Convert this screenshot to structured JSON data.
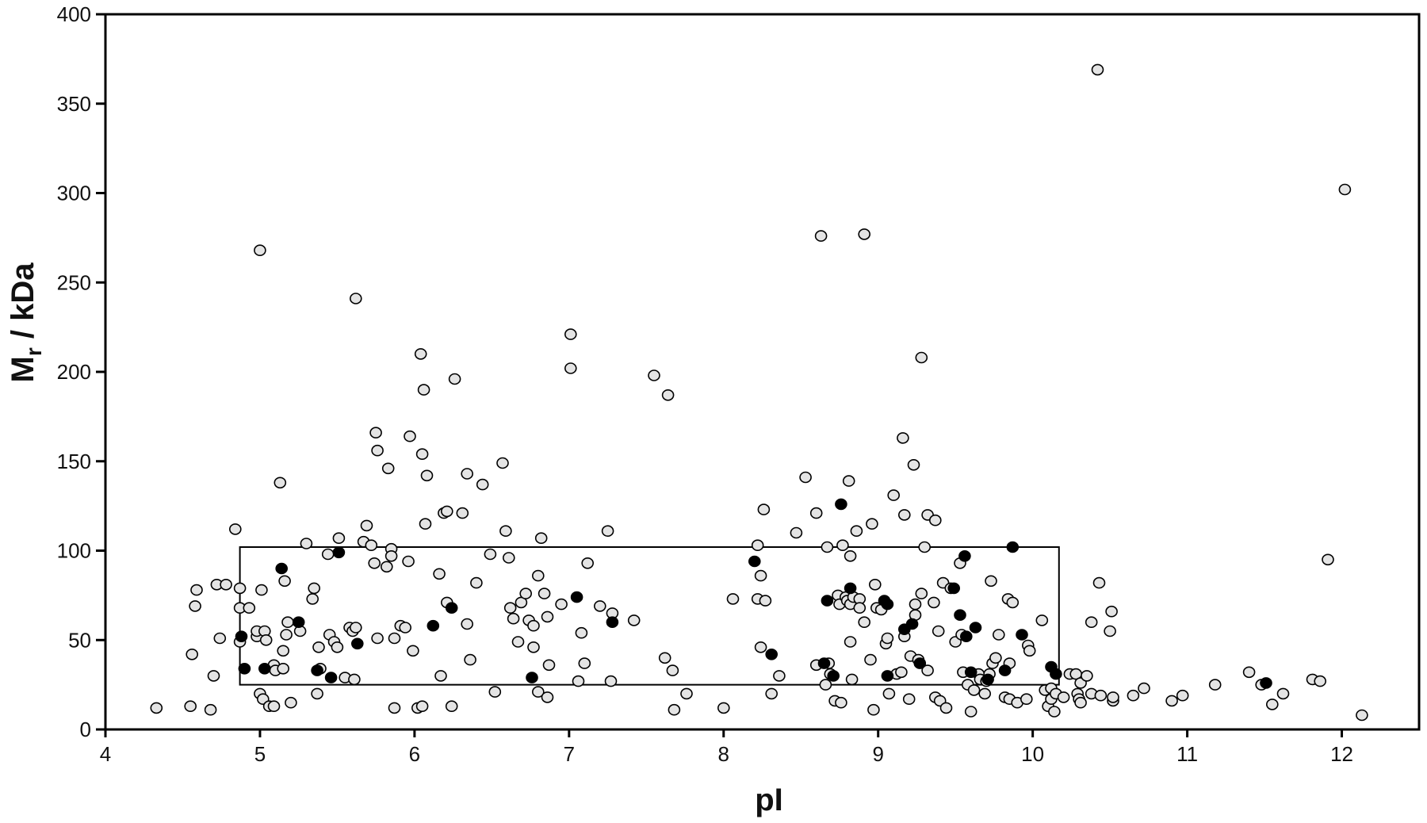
{
  "chart_data": {
    "type": "scatter",
    "xlabel": "pI",
    "ylabel_main": "M",
    "ylabel_sub": "r",
    "ylabel_rest": " / kDa",
    "xlim": [
      4,
      12.5
    ],
    "ylim": [
      0,
      400
    ],
    "xticks": [
      "4",
      "5",
      "6",
      "7",
      "8",
      "9",
      "10",
      "11",
      "12"
    ],
    "yticks": [
      "0",
      "50",
      "100",
      "150",
      "200",
      "250",
      "300",
      "350",
      "400"
    ],
    "grid": false,
    "legend": "none",
    "colors": {
      "open_fill": "#e4e4e4",
      "filled": "#000000",
      "stroke": "#000000"
    },
    "region_box": {
      "x": [
        4.87,
        10.17
      ],
      "y": [
        25,
        102
      ]
    },
    "series": [
      {
        "marker": "open",
        "points": [
          [
            4.33,
            12
          ],
          [
            4.55,
            13
          ],
          [
            4.68,
            11
          ],
          [
            4.56,
            42
          ],
          [
            4.7,
            30
          ],
          [
            4.74,
            51
          ],
          [
            4.58,
            69
          ],
          [
            4.59,
            78
          ],
          [
            4.72,
            81
          ],
          [
            4.78,
            81
          ],
          [
            4.84,
            112
          ],
          [
            4.87,
            68
          ],
          [
            4.87,
            79
          ],
          [
            4.87,
            49
          ],
          [
            4.93,
            68
          ],
          [
            4.98,
            52
          ],
          [
            4.98,
            55
          ],
          [
            5.0,
            20
          ],
          [
            5.02,
            17
          ],
          [
            5.03,
            55
          ],
          [
            5.04,
            50
          ],
          [
            5.0,
            268
          ],
          [
            5.01,
            78
          ],
          [
            5.06,
            13
          ],
          [
            5.09,
            13
          ],
          [
            5.09,
            36
          ],
          [
            5.1,
            33
          ],
          [
            5.13,
            138
          ],
          [
            5.15,
            34
          ],
          [
            5.15,
            44
          ],
          [
            5.17,
            53
          ],
          [
            5.16,
            83
          ],
          [
            5.18,
            60
          ],
          [
            5.2,
            15
          ],
          [
            5.26,
            55
          ],
          [
            5.3,
            104
          ],
          [
            5.34,
            73
          ],
          [
            5.35,
            79
          ],
          [
            5.37,
            20
          ],
          [
            5.39,
            34
          ],
          [
            5.38,
            46
          ],
          [
            5.44,
            98
          ],
          [
            5.45,
            53
          ],
          [
            5.48,
            49
          ],
          [
            5.5,
            46
          ],
          [
            5.51,
            107
          ],
          [
            5.55,
            29
          ],
          [
            5.58,
            57
          ],
          [
            5.6,
            55
          ],
          [
            5.62,
            241
          ],
          [
            5.61,
            28
          ],
          [
            5.62,
            57
          ],
          [
            5.67,
            105
          ],
          [
            5.69,
            114
          ],
          [
            5.72,
            103
          ],
          [
            5.74,
            93
          ],
          [
            5.75,
            166
          ],
          [
            5.76,
            51
          ],
          [
            5.76,
            156
          ],
          [
            5.82,
            91
          ],
          [
            5.83,
            146
          ],
          [
            5.85,
            101
          ],
          [
            5.85,
            97
          ],
          [
            5.87,
            12
          ],
          [
            5.87,
            51
          ],
          [
            5.91,
            58
          ],
          [
            5.94,
            57
          ],
          [
            5.97,
            164
          ],
          [
            5.96,
            94
          ],
          [
            5.99,
            44
          ],
          [
            6.02,
            12
          ],
          [
            6.04,
            210
          ],
          [
            6.05,
            13
          ],
          [
            6.06,
            190
          ],
          [
            6.05,
            154
          ],
          [
            6.07,
            115
          ],
          [
            6.08,
            142
          ],
          [
            6.16,
            87
          ],
          [
            6.17,
            30
          ],
          [
            6.19,
            121
          ],
          [
            6.21,
            122
          ],
          [
            6.24,
            13
          ],
          [
            6.26,
            196
          ],
          [
            6.21,
            71
          ],
          [
            6.31,
            121
          ],
          [
            6.34,
            143
          ],
          [
            6.34,
            59
          ],
          [
            6.36,
            39
          ],
          [
            6.4,
            82
          ],
          [
            6.44,
            137
          ],
          [
            6.49,
            98
          ],
          [
            6.52,
            21
          ],
          [
            6.57,
            149
          ],
          [
            6.59,
            111
          ],
          [
            6.61,
            96
          ],
          [
            6.62,
            68
          ],
          [
            6.64,
            62
          ],
          [
            6.67,
            49
          ],
          [
            6.69,
            71
          ],
          [
            6.72,
            76
          ],
          [
            6.74,
            61
          ],
          [
            6.77,
            58
          ],
          [
            6.77,
            46
          ],
          [
            6.8,
            86
          ],
          [
            6.8,
            21
          ],
          [
            6.82,
            107
          ],
          [
            6.84,
            76
          ],
          [
            6.86,
            63
          ],
          [
            6.87,
            36
          ],
          [
            6.86,
            18
          ],
          [
            6.95,
            70
          ],
          [
            7.01,
            221
          ],
          [
            7.01,
            202
          ],
          [
            7.06,
            27
          ],
          [
            7.08,
            54
          ],
          [
            7.1,
            37
          ],
          [
            7.12,
            93
          ],
          [
            7.2,
            69
          ],
          [
            7.25,
            111
          ],
          [
            7.27,
            27
          ],
          [
            7.28,
            65
          ],
          [
            7.42,
            61
          ],
          [
            7.55,
            198
          ],
          [
            7.62,
            40
          ],
          [
            7.64,
            187
          ],
          [
            7.67,
            33
          ],
          [
            7.68,
            11
          ],
          [
            7.76,
            20
          ],
          [
            8.0,
            12
          ],
          [
            8.06,
            73
          ],
          [
            8.22,
            103
          ],
          [
            8.22,
            73
          ],
          [
            8.24,
            86
          ],
          [
            8.24,
            46
          ],
          [
            8.26,
            123
          ],
          [
            8.27,
            72
          ],
          [
            8.31,
            20
          ],
          [
            8.36,
            30
          ],
          [
            8.47,
            110
          ],
          [
            8.53,
            141
          ],
          [
            8.6,
            121
          ],
          [
            8.6,
            36
          ],
          [
            8.63,
            276
          ],
          [
            8.67,
            102
          ],
          [
            8.66,
            25
          ],
          [
            8.68,
            37
          ],
          [
            8.69,
            31
          ],
          [
            8.72,
            16
          ],
          [
            8.74,
            75
          ],
          [
            8.75,
            70
          ],
          [
            8.76,
            15
          ],
          [
            8.77,
            103
          ],
          [
            8.79,
            74
          ],
          [
            8.8,
            72
          ],
          [
            8.81,
            139
          ],
          [
            8.82,
            97
          ],
          [
            8.82,
            70
          ],
          [
            8.82,
            49
          ],
          [
            8.83,
            28
          ],
          [
            8.84,
            74
          ],
          [
            8.86,
            111
          ],
          [
            8.88,
            73
          ],
          [
            8.88,
            68
          ],
          [
            8.91,
            277
          ],
          [
            8.91,
            60
          ],
          [
            8.95,
            39
          ],
          [
            8.96,
            115
          ],
          [
            8.97,
            11
          ],
          [
            8.98,
            81
          ],
          [
            8.99,
            68
          ],
          [
            9.02,
            67
          ],
          [
            9.05,
            48
          ],
          [
            9.06,
            51
          ],
          [
            9.07,
            20
          ],
          [
            9.1,
            131
          ],
          [
            9.12,
            31
          ],
          [
            9.15,
            32
          ],
          [
            9.16,
            163
          ],
          [
            9.17,
            120
          ],
          [
            9.17,
            52
          ],
          [
            9.2,
            17
          ],
          [
            9.21,
            41
          ],
          [
            9.23,
            148
          ],
          [
            9.24,
            64
          ],
          [
            9.24,
            70
          ],
          [
            9.26,
            39
          ],
          [
            9.28,
            76
          ],
          [
            9.28,
            208
          ],
          [
            9.3,
            102
          ],
          [
            9.32,
            120
          ],
          [
            9.32,
            33
          ],
          [
            9.36,
            71
          ],
          [
            9.37,
            117
          ],
          [
            9.37,
            18
          ],
          [
            9.39,
            55
          ],
          [
            9.4,
            16
          ],
          [
            9.42,
            82
          ],
          [
            9.44,
            12
          ],
          [
            9.47,
            79
          ],
          [
            9.5,
            49
          ],
          [
            9.53,
            93
          ],
          [
            9.54,
            53
          ],
          [
            9.55,
            32
          ],
          [
            9.58,
            25
          ],
          [
            9.6,
            10
          ],
          [
            9.62,
            22
          ],
          [
            9.65,
            31
          ],
          [
            9.66,
            28
          ],
          [
            9.69,
            20
          ],
          [
            9.7,
            27
          ],
          [
            9.72,
            31
          ],
          [
            9.73,
            83
          ],
          [
            9.74,
            37
          ],
          [
            9.76,
            40
          ],
          [
            9.78,
            53
          ],
          [
            9.82,
            18
          ],
          [
            9.84,
            73
          ],
          [
            9.85,
            17
          ],
          [
            9.85,
            37
          ],
          [
            9.87,
            71
          ],
          [
            9.9,
            15
          ],
          [
            9.96,
            17
          ],
          [
            9.97,
            47
          ],
          [
            9.98,
            44
          ],
          [
            10.06,
            61
          ],
          [
            10.08,
            22
          ],
          [
            10.1,
            13
          ],
          [
            10.12,
            17
          ],
          [
            10.12,
            23
          ],
          [
            10.14,
            10
          ],
          [
            10.15,
            20
          ],
          [
            10.2,
            18
          ],
          [
            10.24,
            31
          ],
          [
            10.28,
            31
          ],
          [
            10.29,
            20
          ],
          [
            10.3,
            17
          ],
          [
            10.31,
            15
          ],
          [
            10.31,
            26
          ],
          [
            10.35,
            30
          ],
          [
            10.38,
            60
          ],
          [
            10.38,
            20
          ],
          [
            10.42,
            369
          ],
          [
            10.43,
            82
          ],
          [
            10.44,
            19
          ],
          [
            10.5,
            55
          ],
          [
            10.51,
            66
          ],
          [
            10.52,
            16
          ],
          [
            10.52,
            18
          ],
          [
            10.65,
            19
          ],
          [
            10.72,
            23
          ],
          [
            10.9,
            16
          ],
          [
            10.97,
            19
          ],
          [
            11.18,
            25
          ],
          [
            11.4,
            32
          ],
          [
            11.48,
            25
          ],
          [
            11.55,
            14
          ],
          [
            11.62,
            20
          ],
          [
            11.81,
            28
          ],
          [
            11.86,
            27
          ],
          [
            11.91,
            95
          ],
          [
            12.02,
            302
          ],
          [
            12.13,
            8
          ]
        ]
      },
      {
        "marker": "filled",
        "points": [
          [
            4.88,
            52
          ],
          [
            4.9,
            34
          ],
          [
            5.03,
            34
          ],
          [
            5.14,
            90
          ],
          [
            5.25,
            60
          ],
          [
            5.37,
            33
          ],
          [
            5.46,
            29
          ],
          [
            5.51,
            99
          ],
          [
            5.63,
            48
          ],
          [
            6.12,
            58
          ],
          [
            6.24,
            68
          ],
          [
            6.76,
            29
          ],
          [
            7.05,
            74
          ],
          [
            7.28,
            60
          ],
          [
            8.2,
            94
          ],
          [
            8.31,
            42
          ],
          [
            8.65,
            37
          ],
          [
            8.67,
            72
          ],
          [
            8.71,
            30
          ],
          [
            8.76,
            126
          ],
          [
            8.82,
            79
          ],
          [
            9.04,
            72
          ],
          [
            9.06,
            30
          ],
          [
            9.06,
            70
          ],
          [
            9.17,
            56
          ],
          [
            9.22,
            59
          ],
          [
            9.27,
            37
          ],
          [
            9.49,
            79
          ],
          [
            9.53,
            64
          ],
          [
            9.56,
            97
          ],
          [
            9.57,
            52
          ],
          [
            9.6,
            32
          ],
          [
            9.63,
            57
          ],
          [
            9.71,
            28
          ],
          [
            9.82,
            33
          ],
          [
            9.87,
            102
          ],
          [
            9.93,
            53
          ],
          [
            10.12,
            35
          ],
          [
            10.15,
            31
          ],
          [
            11.51,
            26
          ]
        ]
      }
    ]
  }
}
